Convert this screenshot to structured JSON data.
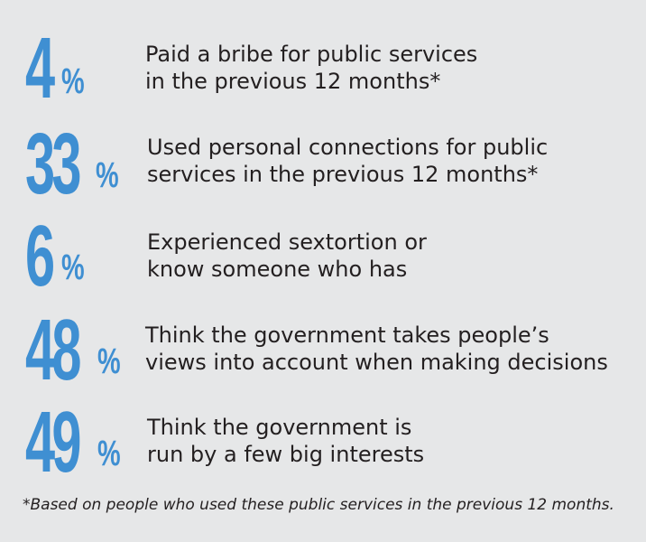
{
  "colors": {
    "background": "#e6e7e8",
    "accent": "#3f8fd2",
    "text": "#231f20"
  },
  "stats": [
    {
      "number": "4",
      "unit": "%",
      "line1": "Paid a bribe for public services",
      "line2": "in the previous 12 months*"
    },
    {
      "number": "33",
      "unit": "%",
      "line1": "Used personal connections for public",
      "line2": "services in the previous 12 months*"
    },
    {
      "number": "6",
      "unit": "%",
      "line1": "Experienced sextortion or",
      "line2": "know someone who has"
    },
    {
      "number": "48",
      "unit": "%",
      "line1": "Think the government takes people’s",
      "line2": "views into account when making decisions"
    },
    {
      "number": "49",
      "unit": "%",
      "line1": "Think the government is",
      "line2": "run by a few big interests"
    }
  ],
  "footnote": "*Based on people who used these public services in the previous 12 months."
}
